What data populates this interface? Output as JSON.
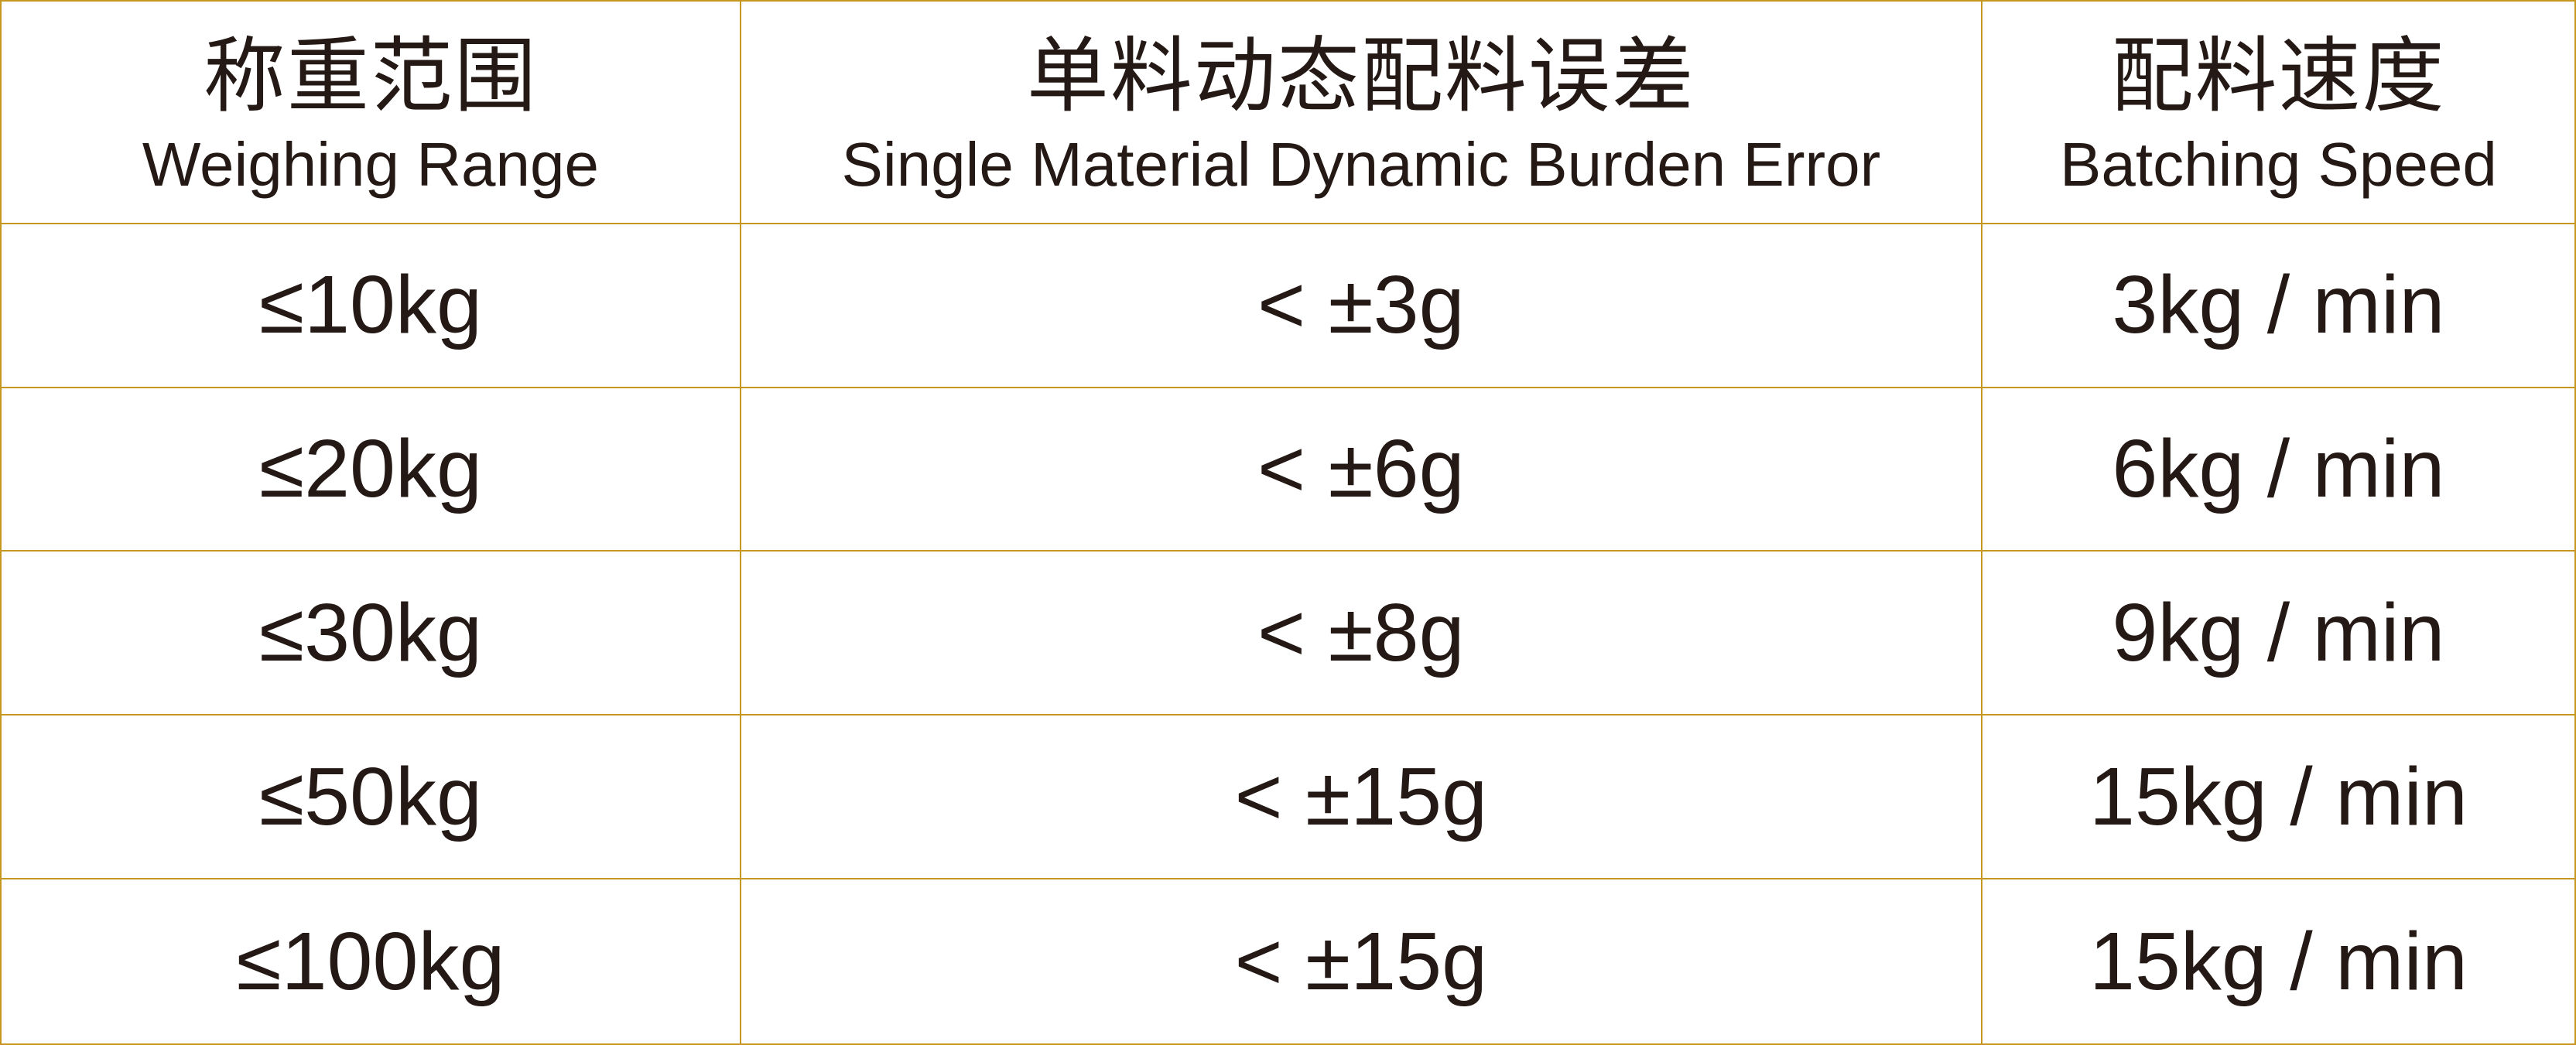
{
  "table": {
    "columns": [
      {
        "zh": "称重范围",
        "en": "Weighing Range"
      },
      {
        "zh": "单料动态配料误差",
        "en": "Single Material Dynamic Burden Error"
      },
      {
        "zh": "配料速度",
        "en": "Batching Speed"
      }
    ],
    "rows": [
      {
        "weighing_range": "≤10kg",
        "burden_error": "< ±3g",
        "batching_speed": "3kg / min"
      },
      {
        "weighing_range": "≤20kg",
        "burden_error": "< ±6g",
        "batching_speed": "6kg / min"
      },
      {
        "weighing_range": "≤30kg",
        "burden_error": "< ±8g",
        "batching_speed": "9kg / min"
      },
      {
        "weighing_range": "≤50kg",
        "burden_error": "< ±15g",
        "batching_speed": "15kg / min"
      },
      {
        "weighing_range": "≤100kg",
        "burden_error": "< ±15g",
        "batching_speed": "15kg / min"
      }
    ]
  },
  "colors": {
    "border": "#C7961F",
    "text": "#241914",
    "background": "#FFFFFF"
  }
}
